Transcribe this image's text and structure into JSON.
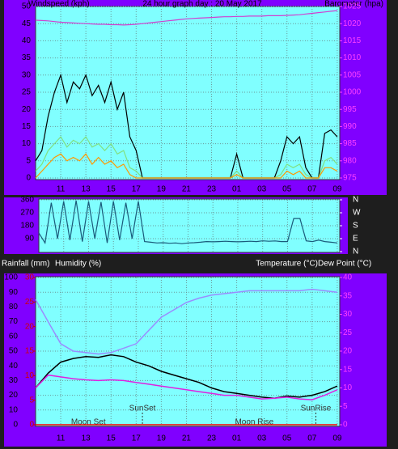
{
  "chart_data": [
    {
      "type": "line",
      "title": "24 hour graph day : 20 May 2017",
      "y_label": "Windspeed (kph)",
      "y2_label": "Barometer (hpa)",
      "x": [
        9,
        9.5,
        10,
        10.5,
        11,
        11.5,
        12,
        12.5,
        13,
        13.5,
        14,
        14.5,
        15,
        15.5,
        16,
        16.5,
        17,
        17.5,
        18,
        18.5,
        19,
        19.5,
        20,
        20.5,
        21,
        21.5,
        22,
        22.5,
        23,
        23.5,
        24,
        24.5,
        25,
        25.5,
        26,
        26.5,
        27,
        27.5,
        28,
        28.5,
        29,
        29.5,
        30,
        30.5,
        31,
        31.5,
        32,
        32.5,
        33
      ],
      "xlim": [
        9,
        33.2
      ],
      "xticks": [
        11,
        13,
        15,
        17,
        19,
        21,
        23,
        {
          "value": 25,
          "label": "01"
        },
        {
          "value": 27,
          "label": "03"
        },
        {
          "value": 29,
          "label": "05"
        },
        {
          "value": 31,
          "label": "07"
        },
        {
          "value": 33,
          "label": "09"
        }
      ],
      "ylim": [
        0,
        50
      ],
      "yticks": [
        0,
        5,
        10,
        15,
        20,
        25,
        30,
        35,
        40,
        45,
        50
      ],
      "y2lim": [
        975,
        1025
      ],
      "y2ticks": [
        975,
        980,
        985,
        990,
        995,
        1000,
        1005,
        1010,
        1015,
        1020,
        1025
      ],
      "grid": true,
      "series": [
        {
          "color": "#000000",
          "values": [
            5,
            8,
            18,
            25,
            30,
            22,
            28,
            26,
            30,
            24,
            27,
            22,
            28,
            20,
            25,
            12,
            8,
            0,
            0,
            0,
            0,
            0,
            0,
            0,
            0,
            0,
            0,
            0,
            0,
            0,
            0,
            0,
            7,
            0,
            0,
            0,
            0,
            0,
            0,
            5,
            12,
            10,
            12,
            3,
            0,
            0,
            13,
            14,
            12
          ]
        },
        {
          "color": "#80e080",
          "values": [
            2,
            4,
            8,
            10,
            12,
            9,
            11,
            10,
            12,
            9,
            10,
            8,
            10,
            7,
            8,
            3,
            2,
            0,
            0,
            0,
            0,
            0,
            0,
            0,
            0,
            0,
            0,
            0,
            0,
            0,
            0,
            0,
            2,
            0,
            0,
            0,
            0,
            0,
            0,
            1,
            4,
            3,
            4,
            1,
            0,
            0,
            5,
            6,
            4
          ]
        },
        {
          "color": "#ff9900",
          "values": [
            0,
            2,
            4,
            6,
            7,
            5,
            6,
            5,
            7,
            4,
            6,
            4,
            5,
            3,
            4,
            1,
            0,
            0,
            0,
            0,
            0,
            0,
            0,
            0,
            0,
            0,
            0,
            0,
            0,
            0,
            0,
            0,
            1,
            0,
            0,
            0,
            0,
            0,
            0,
            0,
            2,
            1,
            2,
            0,
            0,
            0,
            3,
            3,
            2
          ]
        },
        {
          "color": "#d040d0",
          "axis": "y2",
          "values": [
            1021,
            1020.9,
            1020.8,
            1020.6,
            1020.4,
            1020.3,
            1020.2,
            1020.1,
            1020,
            1019.9,
            1019.8,
            1019.8,
            1019.7,
            1019.7,
            1019.6,
            1019.7,
            1019.8,
            1020,
            1020.2,
            1020.4,
            1020.6,
            1020.8,
            1021,
            1021.2,
            1021.4,
            1021.5,
            1021.6,
            1021.7,
            1021.8,
            1021.9,
            1022,
            1022,
            1022.1,
            1022.1,
            1022.2,
            1022.2,
            1022.2,
            1022.3,
            1022.3,
            1022.3,
            1022.4,
            1022.5,
            1022.6,
            1022.8,
            1023,
            1023.2,
            1023.4,
            1023.6,
            1023.8
          ]
        }
      ]
    },
    {
      "type": "line",
      "x": [
        9,
        9.5,
        10,
        10.5,
        11,
        11.5,
        12,
        12.5,
        13,
        13.5,
        14,
        14.5,
        15,
        15.5,
        16,
        16.5,
        17,
        17.5,
        18,
        18.5,
        19,
        19.5,
        20,
        20.5,
        21,
        21.5,
        22,
        22.5,
        23,
        23.5,
        24,
        24.5,
        25,
        25.5,
        26,
        26.5,
        27,
        27.5,
        28,
        28.5,
        29,
        29.5,
        30,
        30.5,
        31,
        31.5,
        32,
        32.5,
        33
      ],
      "xlim": [
        9,
        33.2
      ],
      "xticks": [
        11,
        13,
        15,
        17,
        19,
        21,
        23,
        25,
        27,
        29,
        31,
        33
      ],
      "ylim": [
        0,
        360
      ],
      "yticks": [
        90,
        180,
        270,
        360
      ],
      "y2lim": [
        0,
        360
      ],
      "y2ticks": [
        {
          "value": 360,
          "label": "N"
        },
        {
          "value": 270,
          "label": "W"
        },
        {
          "value": 180,
          "label": "S"
        },
        {
          "value": 90,
          "label": "E"
        },
        {
          "value": 0,
          "label": "N"
        }
      ],
      "grid": true,
      "series": [
        {
          "color": "#1a5a7a",
          "values": [
            130,
            60,
            340,
            90,
            350,
            80,
            355,
            70,
            350,
            90,
            345,
            60,
            350,
            80,
            340,
            90,
            350,
            70,
            65,
            60,
            62,
            58,
            60,
            55,
            60,
            62,
            65,
            70,
            68,
            70,
            72,
            70,
            68,
            70,
            72,
            70,
            75,
            72,
            74,
            70,
            70,
            230,
            230,
            75,
            70,
            80,
            70,
            65,
            60
          ]
        }
      ]
    },
    {
      "type": "line",
      "rain_label": "Rainfall (mm)",
      "y_label": "Humidity (%)",
      "y2_label": "Temperature (°C)",
      "y3_label": "Dew Point (°C)",
      "x": [
        9,
        10,
        11,
        12,
        13,
        14,
        15,
        16,
        17,
        18,
        19,
        20,
        21,
        22,
        23,
        24,
        25,
        26,
        27,
        28,
        29,
        30,
        31,
        32,
        33
      ],
      "xlim": [
        9,
        33.2
      ],
      "xticks": [
        11,
        13,
        15,
        17,
        19,
        21,
        23,
        {
          "value": 25,
          "label": "01"
        },
        {
          "value": 27,
          "label": "03"
        },
        {
          "value": 29,
          "label": "05"
        },
        {
          "value": 31,
          "label": "07"
        },
        {
          "value": 33,
          "label": "09"
        }
      ],
      "ylim": [
        0,
        100
      ],
      "yticks": [
        0,
        10,
        20,
        30,
        40,
        50,
        60,
        70,
        80,
        90,
        100
      ],
      "rain_ylim": [
        0,
        30
      ],
      "rain_yticks": [
        0,
        5,
        10,
        15,
        20,
        25,
        30
      ],
      "y2lim": [
        0,
        40
      ],
      "y2ticks": [
        0,
        5,
        10,
        15,
        20,
        25,
        30,
        35,
        40
      ],
      "grid": true,
      "annotations": [
        {
          "text": "Moon Set",
          "x": 13.2
        },
        {
          "text": "SunSet",
          "x": 17.5
        },
        {
          "text": "Moon Rise",
          "x": 26.4
        },
        {
          "text": "SunRise",
          "x": 31.3
        }
      ],
      "series": [
        {
          "color": "#9a8cff",
          "values": [
            85,
            70,
            55,
            50,
            49,
            48,
            49,
            52,
            55,
            64,
            73,
            78,
            83,
            86,
            88,
            89,
            90,
            91,
            91,
            91,
            91,
            91,
            92,
            91,
            90
          ]
        },
        {
          "color": "#000000",
          "axis": "y2",
          "values": [
            10,
            14,
            17,
            18,
            18.5,
            18.3,
            19,
            18.5,
            17,
            16,
            14.5,
            13.5,
            12.5,
            11.5,
            10,
            9,
            8.5,
            8,
            7.5,
            7.2,
            7.8,
            7.5,
            8,
            9,
            10.5
          ]
        },
        {
          "color": "#e020e0",
          "axis": "y2",
          "values": [
            10,
            13.5,
            13,
            12.5,
            12.2,
            12,
            12.2,
            12,
            11.5,
            11,
            10.5,
            10,
            9.5,
            9,
            8.5,
            8,
            8,
            7.5,
            7,
            7.2,
            7.5,
            7,
            6.8,
            8,
            9.5
          ]
        },
        {
          "color": "#ff0000",
          "axis": "rain",
          "values": [
            0,
            0,
            0,
            0,
            0,
            0,
            0,
            0,
            0,
            0,
            0,
            0,
            0,
            0,
            0,
            0,
            0,
            0,
            0,
            0,
            0,
            0,
            0,
            0,
            0
          ]
        }
      ]
    }
  ]
}
